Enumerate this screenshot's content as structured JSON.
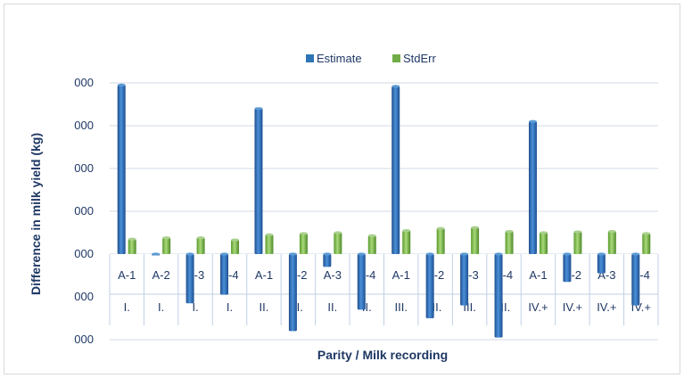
{
  "chart_data": {
    "type": "bar",
    "xlabel": "Parity / Milk recording",
    "ylabel": "Difference in milk yield (kg)",
    "y_tick_labels": [
      "000",
      "000",
      "000",
      "000",
      "000",
      "000",
      "000"
    ],
    "ylim": [
      -2,
      4
    ],
    "grid": true,
    "legend_position": "top",
    "categories": [
      {
        "sub": "A-1",
        "group": "I."
      },
      {
        "sub": "A-2",
        "group": "I."
      },
      {
        "sub": "A-3",
        "group": "I."
      },
      {
        "sub": "A-4",
        "group": "I."
      },
      {
        "sub": "A-1",
        "group": "II."
      },
      {
        "sub": "A-2",
        "group": "II."
      },
      {
        "sub": "A-3",
        "group": "II."
      },
      {
        "sub": "A-4",
        "group": "II."
      },
      {
        "sub": "A-1",
        "group": "III."
      },
      {
        "sub": "A-2",
        "group": "III."
      },
      {
        "sub": "A-3",
        "group": "III."
      },
      {
        "sub": "A-4",
        "group": "III."
      },
      {
        "sub": "A-1",
        "group": "IV.+"
      },
      {
        "sub": "A-2",
        "group": "IV.+"
      },
      {
        "sub": "A-3",
        "group": "IV.+"
      },
      {
        "sub": "A-4",
        "group": "IV.+"
      }
    ],
    "series": [
      {
        "name": "Estimate",
        "color": "#2e75b6",
        "values": [
          3.95,
          -0.03,
          -1.15,
          -0.95,
          3.4,
          -1.8,
          -0.3,
          -1.3,
          3.92,
          -1.5,
          -1.2,
          -1.95,
          3.1,
          -0.65,
          -0.45,
          -1.2
        ]
      },
      {
        "name": "StdErr",
        "color": "#70ad47",
        "values": [
          0.35,
          0.38,
          0.38,
          0.33,
          0.45,
          0.48,
          0.5,
          0.43,
          0.55,
          0.6,
          0.62,
          0.53,
          0.5,
          0.52,
          0.53,
          0.48
        ]
      }
    ]
  }
}
